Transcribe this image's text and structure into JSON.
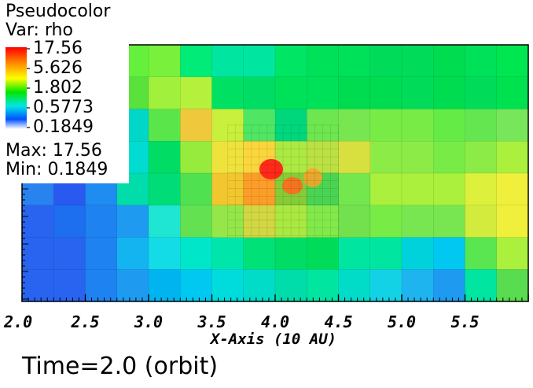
{
  "legend": {
    "title": "Pseudocolor",
    "var": "Var: rho",
    "ticks": [
      "17.56",
      "5.626",
      "1.802",
      "0.5773",
      "0.1849"
    ],
    "max": "Max:  17.56",
    "min": "Min:  0.1849"
  },
  "time_label": "Time=2.0 (orbit)",
  "chart_data": {
    "type": "heatmap",
    "title": "",
    "xlabel": "X-Axis (10 AU)",
    "ylabel": "",
    "xlim": [
      2.0,
      6.0
    ],
    "x_ticks": [
      "2.0",
      "2.5",
      "3.0",
      "3.5",
      "4.0",
      "4.5",
      "5.0",
      "5.5"
    ],
    "colorbar": {
      "min": 0.1849,
      "max": 17.56,
      "scale": "log"
    },
    "coarse_grid_colors": [
      [
        "#00e15a",
        "#00e65a",
        "#5aeb3c",
        "#64f03c",
        "#78f03c",
        "#00eb78",
        "#00e6a0",
        "#00e6a0",
        "#00e664",
        "#00e15a",
        "#00e15a",
        "#00dc5a",
        "#00dc5a",
        "#00dc50",
        "#00e15a",
        "#00e650"
      ],
      [
        "#00e178",
        "#00dc78",
        "#5adc3c",
        "#5ae13c",
        "#a0f03c",
        "#b4f03c",
        "#00e164",
        "#00dc64",
        "#00e15a",
        "#00e15a",
        "#00dc50",
        "#00dc50",
        "#00dc5a",
        "#00dc50",
        "#00dc5a",
        "#00e150"
      ],
      [
        "#00dca0",
        "#00e1a0",
        "#00e6b4",
        "#00d7c8",
        "#5ae64b",
        "#f0c83c",
        "#c8f03c",
        "#50e664",
        "#00d77d",
        "#6ee650",
        "#78e650",
        "#78eb46",
        "#78eb46",
        "#64eb46",
        "#64e650",
        "#78e65a"
      ],
      [
        "#0ad2dc",
        "#00dcc8",
        "#00dcc8",
        "#00dcd2",
        "#00dc64",
        "#96eb3c",
        "#c8f03c",
        "#f0dc3c",
        "#c8f03c",
        "#fad23c",
        "#78eb46",
        "#8ceb46",
        "#8ceb46",
        "#78eb46",
        "#8ceb46",
        "#aaf03c"
      ],
      [
        "#2882f0",
        "#285af0",
        "#1e8cf0",
        "#00dcaa",
        "#00dc78",
        "#50e150",
        "#d2f03c",
        "#f09628",
        "#f09628",
        "#fab428",
        "#96eb46",
        "#aaf03c",
        "#aaf03c",
        "#aaf03c",
        "#dcf03c",
        "#f0f03c"
      ],
      [
        "#2864f0",
        "#1e6ef0",
        "#1e82f0",
        "#1e9bf0",
        "#1ee6d2",
        "#64e150",
        "#78e650",
        "#64e150",
        "#64e150",
        "#c8f03c",
        "#96eb46",
        "#78eb46",
        "#78e650",
        "#78e650",
        "#d2eb3c",
        "#f0f03c"
      ],
      [
        "#2864f0",
        "#2864f0",
        "#1e82f0",
        "#14b4f0",
        "#14dce6",
        "#00e6c8",
        "#00e6aa",
        "#00e178",
        "#00dc64",
        "#00dc5a",
        "#00e6a0",
        "#00e6a0",
        "#00d2dc",
        "#00c8f0",
        "#5ae650",
        "#aaf03c"
      ],
      [
        "#2864f0",
        "#2864f0",
        "#1e82f0",
        "#1e9bf0",
        "#00b4f0",
        "#00c8f0",
        "#00dcdc",
        "#00dcc8",
        "#00dcaa",
        "#00e6a0",
        "#00dcc8",
        "#14d2e6",
        "#1eb4f0",
        "#1e9bf0",
        "#00e6a0",
        "#5adc50"
      ]
    ],
    "fine_region_colors": [
      [
        "#ffdc3c",
        "#ffd23c",
        "#a0e646",
        "#a0e646",
        "#ffdc3c"
      ],
      [
        "#ffb428",
        "#ffa028",
        "#5ae13c",
        "#00e164",
        "#64e650"
      ],
      [
        "#a0e646",
        "#ffd23c",
        "#c8eb3c",
        "#64e650",
        "#64dc50"
      ]
    ]
  }
}
